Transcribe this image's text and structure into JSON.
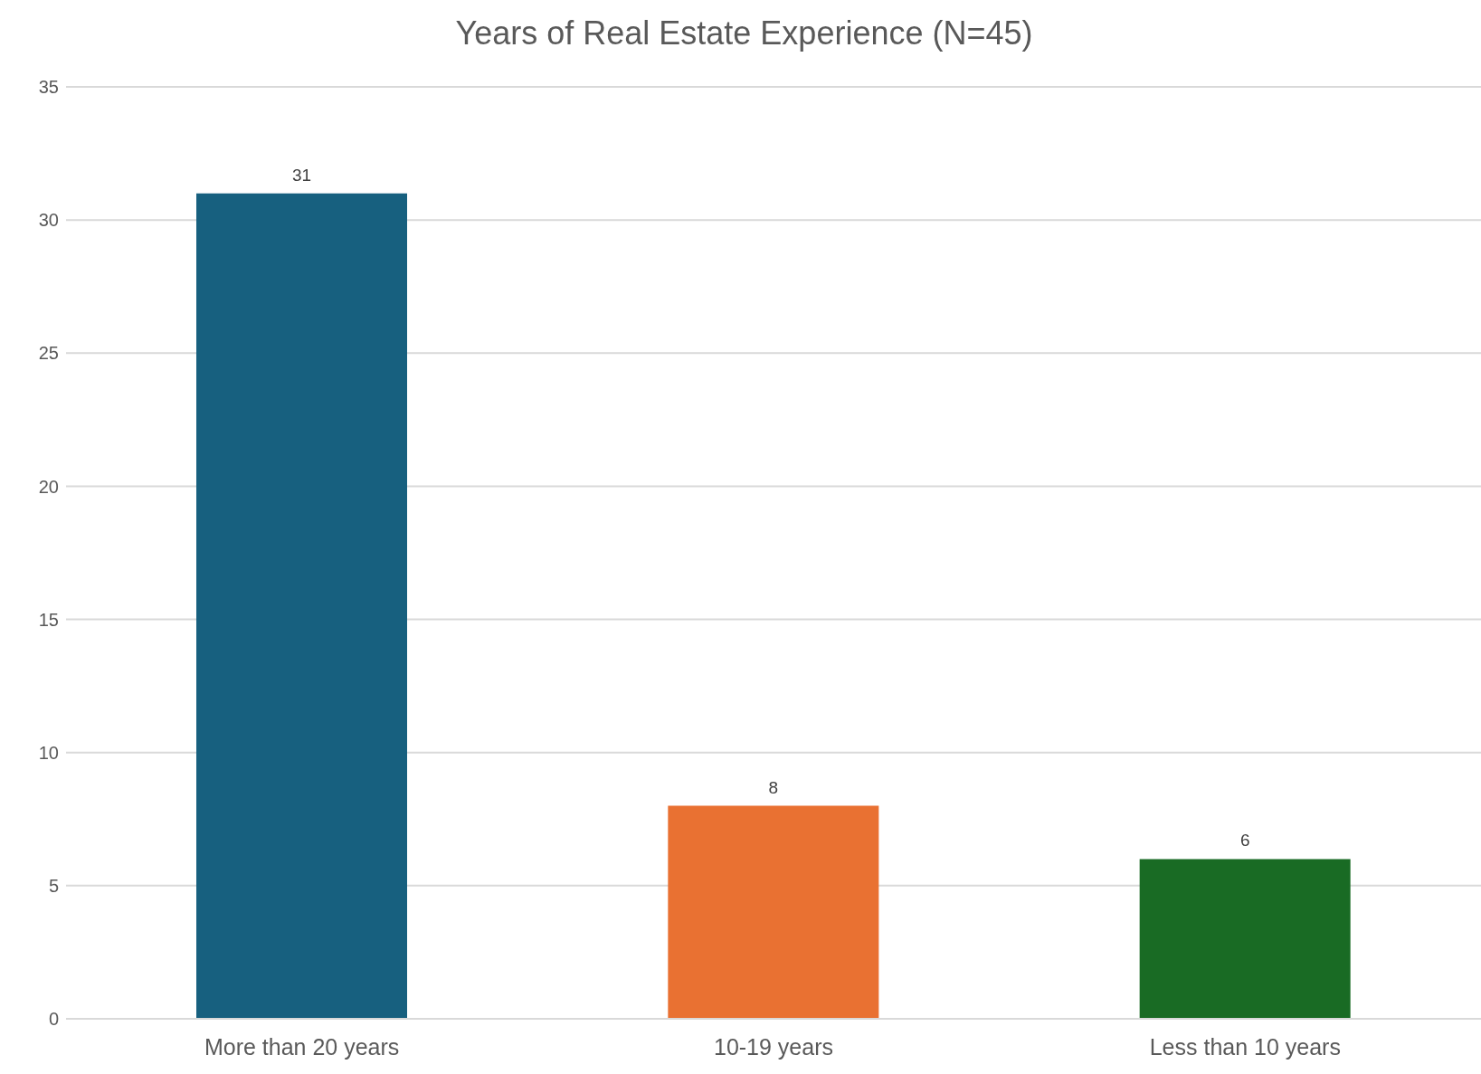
{
  "chart_data": {
    "type": "bar",
    "title": "Years of Real Estate Experience (N=45)",
    "categories": [
      "More than 20 years",
      "10-19 years",
      "Less than 10 years"
    ],
    "values": [
      31,
      8,
      6
    ],
    "colors": [
      "#17607f",
      "#e97132",
      "#196b24"
    ],
    "ylim": [
      0,
      35
    ],
    "yticks": [
      0,
      5,
      10,
      15,
      20,
      25,
      30,
      35
    ],
    "grid": "y",
    "data_labels": true
  }
}
